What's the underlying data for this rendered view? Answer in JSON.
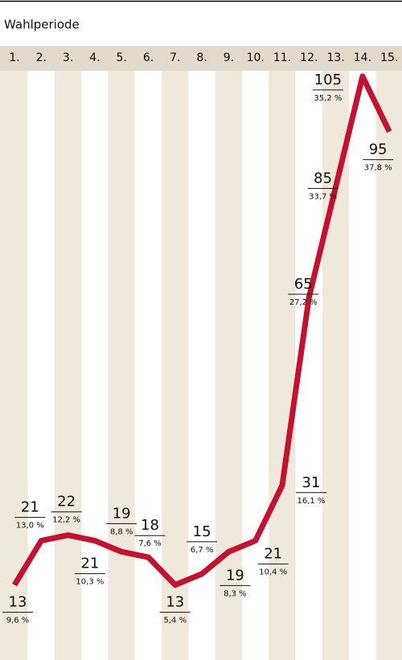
{
  "chart_data": {
    "type": "line",
    "title": "Wahlperiode",
    "categories": [
      "1.",
      "2.",
      "3.",
      "4.",
      "5.",
      "6.",
      "7.",
      "8.",
      "9.",
      "10.",
      "11.",
      "12.",
      "13.",
      "14.",
      "15."
    ],
    "values": [
      13,
      21,
      22,
      21,
      19,
      18,
      13,
      15,
      19,
      21,
      31,
      65,
      85,
      105,
      95
    ],
    "share_labels": [
      "9,6 %",
      "13,0 %",
      "12,2 %",
      "10,3 %",
      "8,8 %",
      "7,6 %",
      "5,4 %",
      "6,7 %",
      "8,3 %",
      "10,4 %",
      "16,1 %",
      "27,2 %",
      "33,7 %",
      "35,2 %",
      "37,8 %"
    ],
    "color": "#c8102e",
    "ylim": [
      0,
      106
    ]
  }
}
